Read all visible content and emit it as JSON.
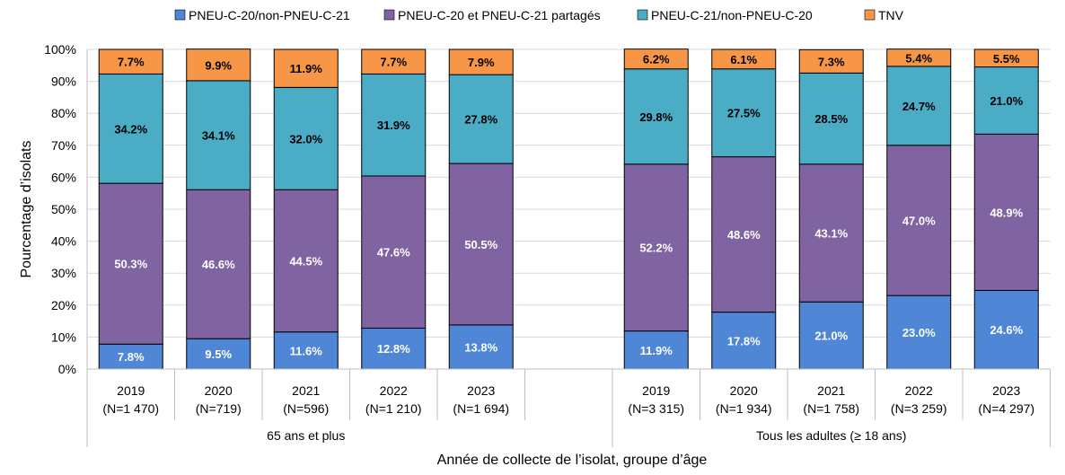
{
  "chart_data": {
    "type": "bar",
    "stacked": true,
    "ylim": [
      0,
      100
    ],
    "ytick_labels": [
      "0%",
      "10%",
      "20%",
      "30%",
      "40%",
      "50%",
      "60%",
      "70%",
      "80%",
      "90%",
      "100%"
    ],
    "ylabel": "Pourcentage d’isolats",
    "xlabel": "Année de collecte de l’isolat, groupe d’âge",
    "legend_position": "top",
    "grid": true,
    "groups": [
      {
        "name": "65 ans et plus",
        "categories": [
          {
            "year": "2019",
            "n": "(N=1 470)"
          },
          {
            "year": "2020",
            "n": "(N=719)"
          },
          {
            "year": "2021",
            "n": "(N=596)"
          },
          {
            "year": "2022",
            "n": "(N=1 210)"
          },
          {
            "year": "2023",
            "n": "(N=1 694)"
          }
        ]
      },
      {
        "name": "Tous les adultes (≥ 18 ans)",
        "categories": [
          {
            "year": "2019",
            "n": "(N=3 315)"
          },
          {
            "year": "2020",
            "n": "(N=1 934)"
          },
          {
            "year": "2021",
            "n": "(N=1 758)"
          },
          {
            "year": "2022",
            "n": "(N=3 259)"
          },
          {
            "year": "2023",
            "n": "(N=4 297)"
          }
        ]
      }
    ],
    "series": [
      {
        "name": "PNEU-C-20/non-PNEU-C-21",
        "color": "#4f86d6",
        "label_color": "#ffffff",
        "values": [
          7.8,
          9.5,
          11.6,
          12.8,
          13.8,
          11.9,
          17.8,
          21.0,
          23.0,
          24.6
        ],
        "labels": [
          "7.8%",
          "9.5%",
          "11.6%",
          "12.8%",
          "13.8%",
          "11.9%",
          "17.8%",
          "21.0%",
          "23.0%",
          "24.6%"
        ]
      },
      {
        "name": "PNEU-C-20 et PNEU-C-21 partagés",
        "color": "#8064a2",
        "label_color": "#ffffff",
        "values": [
          50.3,
          46.6,
          44.5,
          47.6,
          50.5,
          52.2,
          48.6,
          43.1,
          47.0,
          48.9
        ],
        "labels": [
          "50.3%",
          "46.6%",
          "44.5%",
          "47.6%",
          "50.5%",
          "52.2%",
          "48.6%",
          "43.1%",
          "47.0%",
          "48.9%"
        ]
      },
      {
        "name": "PNEU-C-21/non-PNEU-C-20",
        "color": "#4bacc6",
        "label_color": "#000000",
        "values": [
          34.2,
          34.1,
          32.0,
          31.9,
          27.8,
          29.8,
          27.5,
          28.5,
          24.7,
          21.0
        ],
        "labels": [
          "34.2%",
          "34.1%",
          "32.0%",
          "31.9%",
          "27.8%",
          "29.8%",
          "27.5%",
          "28.5%",
          "24.7%",
          "21.0%"
        ]
      },
      {
        "name": "TNV",
        "color": "#f79646",
        "label_color": "#000000",
        "values": [
          7.7,
          9.9,
          11.9,
          7.7,
          7.9,
          6.2,
          6.1,
          7.3,
          5.4,
          5.5
        ],
        "labels": [
          "7.7%",
          "9.9%",
          "11.9%",
          "7.7%",
          "7.9%",
          "6.2%",
          "6.1%",
          "7.3%",
          "5.4%",
          "5.5%"
        ]
      }
    ]
  }
}
